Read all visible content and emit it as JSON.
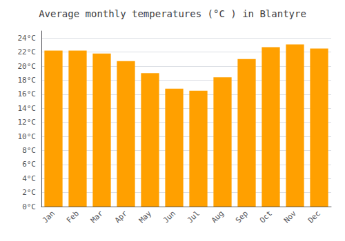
{
  "chart_data": {
    "type": "bar",
    "title": "Average monthly temperatures (°C ) in Blantyre",
    "categories": [
      "Jan",
      "Feb",
      "Mar",
      "Apr",
      "May",
      "Jun",
      "Jul",
      "Aug",
      "Sep",
      "Oct",
      "Nov",
      "Dec"
    ],
    "values": [
      22.2,
      22.2,
      21.8,
      20.7,
      19.0,
      16.8,
      16.5,
      18.4,
      21.0,
      22.7,
      23.1,
      22.5
    ],
    "color": "#FFA000",
    "ylim": [
      0,
      25
    ],
    "yticks": [
      {
        "value": 0,
        "label": "0°C"
      },
      {
        "value": 2,
        "label": "2°C"
      },
      {
        "value": 4,
        "label": "4°C"
      },
      {
        "value": 6,
        "label": "6°C"
      },
      {
        "value": 8,
        "label": "8°C"
      },
      {
        "value": 10,
        "label": "10°C"
      },
      {
        "value": 12,
        "label": "12°C"
      },
      {
        "value": 14,
        "label": "14°C"
      },
      {
        "value": 16,
        "label": "16°C"
      },
      {
        "value": 18,
        "label": "18°C"
      },
      {
        "value": 20,
        "label": "20°C"
      },
      {
        "value": 22,
        "label": "22°C"
      },
      {
        "value": 24,
        "label": "24°C"
      }
    ],
    "grid": true
  }
}
